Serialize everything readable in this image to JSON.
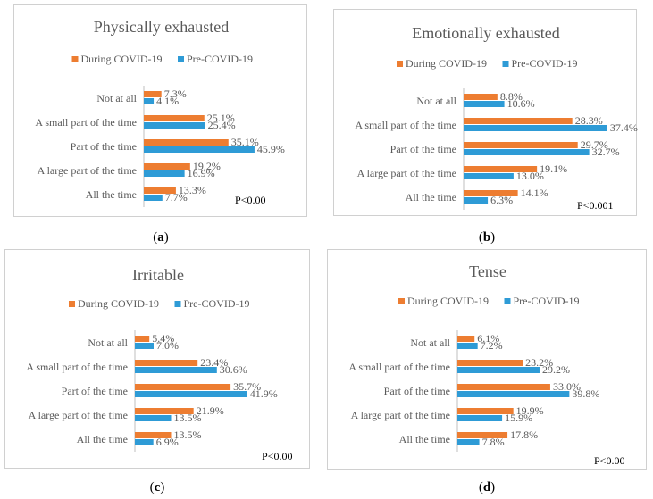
{
  "colors": {
    "during": "#ED7D31",
    "pre": "#2E9BD6",
    "axis": "#bfbfbf"
  },
  "chart_data": [
    {
      "type": "bar",
      "orientation": "horizontal",
      "title": "Physically exhausted",
      "categories": [
        "Not at all",
        "A small part of the time",
        "Part of the time",
        "A large part of the time",
        "All the time"
      ],
      "series": [
        {
          "name": "During COVID-19",
          "values": [
            7.3,
            25.1,
            35.1,
            19.2,
            13.3
          ],
          "labels": [
            "7.3%",
            "25.1%",
            "35.1%",
            "19.2%",
            "13.3%"
          ]
        },
        {
          "name": "Pre-COVID-19",
          "values": [
            4.1,
            25.4,
            45.9,
            16.9,
            7.7
          ],
          "labels": [
            "4.1%",
            "25.4%",
            "45.9%",
            "16.9%",
            "7.7%"
          ]
        }
      ],
      "annotation": "P<0.00",
      "caption_letter": "a",
      "xlim": [
        0,
        50
      ]
    },
    {
      "type": "bar",
      "orientation": "horizontal",
      "title": "Emotionally exhausted",
      "categories": [
        "Not at all",
        "A small part of the time",
        "Part of the time",
        "A large part of the time",
        "All the time"
      ],
      "series": [
        {
          "name": "During COVID-19",
          "values": [
            8.8,
            28.3,
            29.7,
            19.1,
            14.1
          ],
          "labels": [
            "8.8%",
            "28.3%",
            "29.7%",
            "19.1%",
            "14.1%"
          ]
        },
        {
          "name": "Pre-COVID-19",
          "values": [
            10.6,
            37.4,
            32.7,
            13.0,
            6.3
          ],
          "labels": [
            "10.6%",
            "37.4%",
            "32.7%",
            "13.0%",
            "6.3%"
          ]
        }
      ],
      "annotation": "P<0.001",
      "caption_letter": "b",
      "xlim": [
        0,
        40
      ]
    },
    {
      "type": "bar",
      "orientation": "horizontal",
      "title": "Irritable",
      "categories": [
        "Not at all",
        "A small part of the time",
        "Part of the time",
        "A large part of the time",
        "All the time"
      ],
      "series": [
        {
          "name": "During COVID-19",
          "values": [
            5.4,
            23.4,
            35.7,
            21.9,
            13.5
          ],
          "labels": [
            "5.4%",
            "23.4%",
            "35.7%",
            "21.9%",
            "13.5%"
          ]
        },
        {
          "name": "Pre-COVID-19",
          "values": [
            7.0,
            30.6,
            41.9,
            13.5,
            6.9
          ],
          "labels": [
            "7.0%",
            "30.6%",
            "41.9%",
            "13.5%",
            "6.9%"
          ]
        }
      ],
      "annotation": "P<0.00",
      "caption_letter": "c",
      "xlim": [
        0,
        50
      ]
    },
    {
      "type": "bar",
      "orientation": "horizontal",
      "title": "Tense",
      "categories": [
        "Not at all",
        "A small part of the time",
        "Part of the time",
        "A large part of the time",
        "All the time"
      ],
      "series": [
        {
          "name": "During COVID-19",
          "values": [
            6.1,
            23.2,
            33.0,
            19.9,
            17.8
          ],
          "labels": [
            "6.1%",
            "23.2%",
            "33.0%",
            "19.9%",
            "17.8%"
          ]
        },
        {
          "name": "Pre-COVID-19",
          "values": [
            7.2,
            29.2,
            39.8,
            15.9,
            7.8
          ],
          "labels": [
            "7.2%",
            "29.2%",
            "39.8%",
            "15.9%",
            "7.8%"
          ]
        }
      ],
      "annotation": "P<0.00",
      "caption_letter": "d",
      "xlim": [
        0,
        50
      ]
    }
  ]
}
